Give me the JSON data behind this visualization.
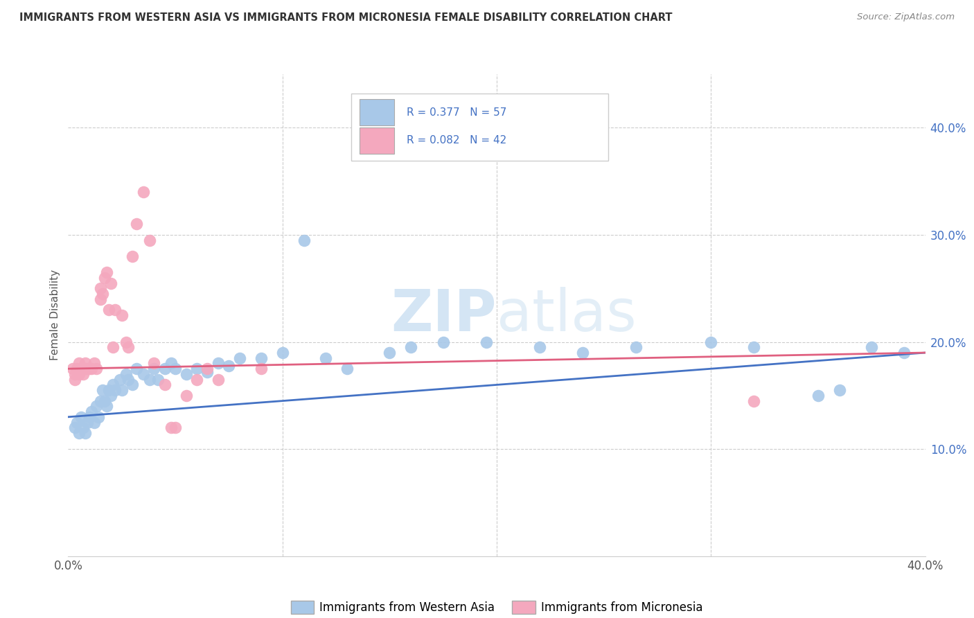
{
  "title": "IMMIGRANTS FROM WESTERN ASIA VS IMMIGRANTS FROM MICRONESIA FEMALE DISABILITY CORRELATION CHART",
  "source": "Source: ZipAtlas.com",
  "ylabel": "Female Disability",
  "xlim": [
    0.0,
    0.4
  ],
  "ylim": [
    0.0,
    0.45
  ],
  "legend_labels": [
    "Immigrants from Western Asia",
    "Immigrants from Micronesia"
  ],
  "series1_label": "R = 0.377   N = 57",
  "series2_label": "R = 0.082   N = 42",
  "series1_color": "#a8c8e8",
  "series2_color": "#f4a8be",
  "series1_line_color": "#4472c4",
  "series2_line_color": "#e06080",
  "watermark": "ZIPatlas",
  "blue_scatter_x": [
    0.003,
    0.004,
    0.005,
    0.006,
    0.007,
    0.008,
    0.009,
    0.01,
    0.011,
    0.012,
    0.013,
    0.014,
    0.015,
    0.016,
    0.017,
    0.018,
    0.019,
    0.02,
    0.021,
    0.022,
    0.024,
    0.025,
    0.027,
    0.028,
    0.03,
    0.032,
    0.035,
    0.038,
    0.04,
    0.042,
    0.045,
    0.048,
    0.05,
    0.055,
    0.06,
    0.065,
    0.07,
    0.075,
    0.08,
    0.09,
    0.1,
    0.11,
    0.12,
    0.13,
    0.15,
    0.16,
    0.175,
    0.195,
    0.22,
    0.24,
    0.265,
    0.3,
    0.32,
    0.35,
    0.36,
    0.375,
    0.39
  ],
  "blue_scatter_y": [
    0.12,
    0.125,
    0.115,
    0.13,
    0.12,
    0.115,
    0.125,
    0.13,
    0.135,
    0.125,
    0.14,
    0.13,
    0.145,
    0.155,
    0.145,
    0.14,
    0.155,
    0.15,
    0.16,
    0.155,
    0.165,
    0.155,
    0.17,
    0.165,
    0.16,
    0.175,
    0.17,
    0.165,
    0.175,
    0.165,
    0.175,
    0.18,
    0.175,
    0.17,
    0.175,
    0.172,
    0.18,
    0.178,
    0.185,
    0.185,
    0.19,
    0.295,
    0.185,
    0.175,
    0.19,
    0.195,
    0.2,
    0.2,
    0.195,
    0.19,
    0.195,
    0.2,
    0.195,
    0.15,
    0.155,
    0.195,
    0.19
  ],
  "pink_scatter_x": [
    0.002,
    0.003,
    0.003,
    0.004,
    0.005,
    0.005,
    0.006,
    0.007,
    0.007,
    0.008,
    0.008,
    0.009,
    0.01,
    0.011,
    0.012,
    0.013,
    0.015,
    0.015,
    0.016,
    0.017,
    0.018,
    0.019,
    0.02,
    0.021,
    0.022,
    0.025,
    0.027,
    0.028,
    0.03,
    0.032,
    0.035,
    0.038,
    0.04,
    0.045,
    0.048,
    0.05,
    0.055,
    0.06,
    0.065,
    0.07,
    0.09,
    0.32
  ],
  "pink_scatter_y": [
    0.175,
    0.17,
    0.165,
    0.175,
    0.18,
    0.17,
    0.175,
    0.175,
    0.17,
    0.18,
    0.175,
    0.175,
    0.175,
    0.175,
    0.18,
    0.175,
    0.25,
    0.24,
    0.245,
    0.26,
    0.265,
    0.23,
    0.255,
    0.195,
    0.23,
    0.225,
    0.2,
    0.195,
    0.28,
    0.31,
    0.34,
    0.295,
    0.18,
    0.16,
    0.12,
    0.12,
    0.15,
    0.165,
    0.175,
    0.165,
    0.175,
    0.145
  ],
  "blue_line_x0": 0.0,
  "blue_line_y0": 0.13,
  "blue_line_x1": 0.4,
  "blue_line_y1": 0.19,
  "pink_line_x0": 0.0,
  "pink_line_y0": 0.175,
  "pink_line_x1": 0.4,
  "pink_line_y1": 0.19
}
